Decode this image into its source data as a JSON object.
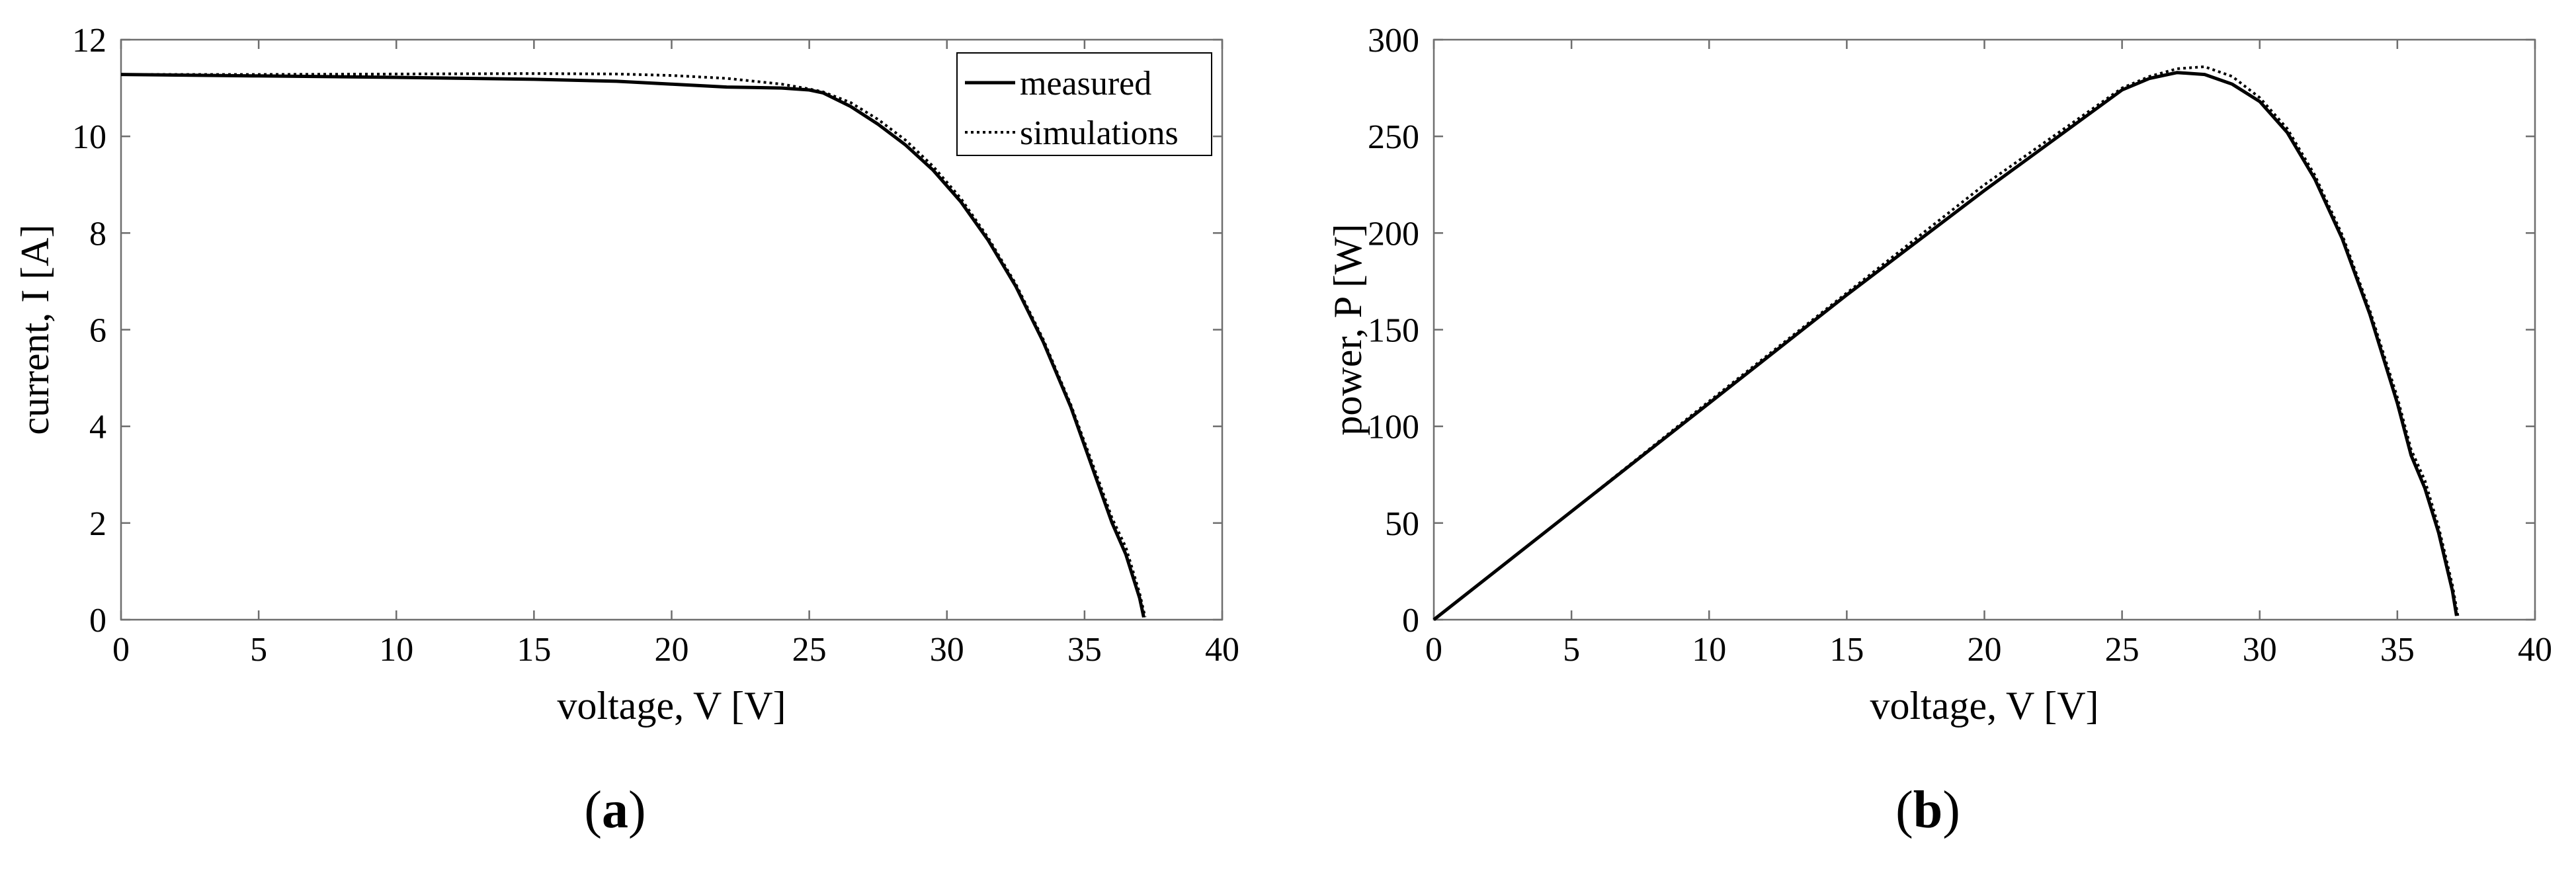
{
  "chart_data": [
    {
      "type": "line",
      "panel_label": "a",
      "xlabel": "voltage, V [V]",
      "ylabel": "current, I [A]",
      "xlim": [
        0,
        40
      ],
      "ylim": [
        0,
        12
      ],
      "xticks": [
        0,
        5,
        10,
        15,
        20,
        25,
        30,
        35,
        40
      ],
      "yticks": [
        0,
        2,
        4,
        6,
        8,
        10,
        12
      ],
      "grid": false,
      "legend": "top-right",
      "series": [
        {
          "name": "measured",
          "style": "solid",
          "x": [
            0,
            5,
            10,
            15,
            18,
            20,
            22,
            24,
            25,
            25.5,
            26.5,
            27.5,
            28.5,
            29.5,
            30.5,
            31.5,
            32.5,
            33.5,
            34.5,
            35.5,
            36,
            36.5,
            37,
            37.15
          ],
          "y": [
            11.28,
            11.25,
            11.22,
            11.18,
            11.14,
            11.08,
            11.02,
            11.0,
            10.96,
            10.9,
            10.62,
            10.25,
            9.82,
            9.3,
            8.65,
            7.85,
            6.9,
            5.75,
            4.4,
            2.8,
            2.0,
            1.35,
            0.45,
            0.05
          ]
        },
        {
          "name": "simulations",
          "style": "dotted",
          "x": [
            0,
            5,
            10,
            15,
            18,
            20,
            22,
            24,
            25,
            25.5,
            26.5,
            27.5,
            28.5,
            29.5,
            30.5,
            31.5,
            32.5,
            33.5,
            34.5,
            35.5,
            36,
            36.5,
            37,
            37.2
          ],
          "y": [
            11.28,
            11.28,
            11.29,
            11.3,
            11.29,
            11.26,
            11.2,
            11.08,
            10.98,
            10.92,
            10.7,
            10.35,
            9.92,
            9.38,
            8.72,
            7.9,
            6.95,
            5.8,
            4.45,
            2.9,
            2.1,
            1.5,
            0.55,
            0.05
          ]
        }
      ]
    },
    {
      "type": "line",
      "panel_label": "b",
      "xlabel": "voltage, V [V]",
      "ylabel": "power, P [W]",
      "xlim": [
        0,
        40
      ],
      "ylim": [
        0,
        300
      ],
      "xticks": [
        0,
        5,
        10,
        15,
        20,
        25,
        30,
        35,
        40
      ],
      "yticks": [
        0,
        50,
        100,
        150,
        200,
        250,
        300
      ],
      "grid": false,
      "series": [
        {
          "name": "measured",
          "style": "solid",
          "x": [
            0,
            5,
            10,
            15,
            20,
            25,
            26,
            27,
            28,
            29,
            30,
            31,
            32,
            33,
            34,
            35,
            35.5,
            36,
            36.5,
            37,
            37.15
          ],
          "y": [
            0,
            56,
            112,
            168,
            222,
            274,
            280,
            283,
            282,
            277,
            268,
            252,
            228,
            197,
            158,
            112,
            85,
            68,
            45,
            15,
            2
          ]
        },
        {
          "name": "simulations",
          "style": "dotted",
          "x": [
            0,
            5,
            10,
            15,
            20,
            25,
            26,
            27,
            28,
            29,
            30,
            31,
            32,
            33,
            34,
            35,
            35.5,
            36,
            36.5,
            37,
            37.2
          ],
          "y": [
            0,
            56,
            113,
            169,
            225,
            275,
            281,
            285,
            286,
            281,
            270,
            254,
            230,
            199,
            160,
            115,
            88,
            72,
            48,
            18,
            2
          ]
        }
      ]
    }
  ]
}
